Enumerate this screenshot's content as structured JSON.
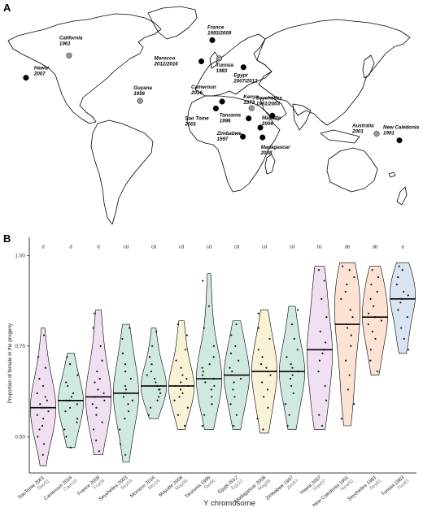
{
  "panel_a": {
    "letter": "A",
    "locations": [
      {
        "id": "hawai",
        "lines": [
          "Hawai",
          "2007"
        ],
        "color": "black",
        "lon": -157.8,
        "lat": 21.3
      },
      {
        "id": "california",
        "lines": [
          "California",
          "1961"
        ],
        "color": "grey",
        "lon": -120.5,
        "lat": 36.5
      },
      {
        "id": "guyana",
        "lines": [
          "Guyana",
          "1956"
        ],
        "color": "grey",
        "lon": -59.0,
        "lat": 5.5
      },
      {
        "id": "france",
        "lines": [
          "France",
          "1993/2009"
        ],
        "color": "black",
        "lon": 3.5,
        "lat": 47.0
      },
      {
        "id": "morocco",
        "lines": [
          "Morocco",
          "2012/2016"
        ],
        "color": "black",
        "lon": -6.0,
        "lat": 32.5
      },
      {
        "id": "tunisia",
        "lines": [
          "Tunisia",
          "1983"
        ],
        "color": "grey",
        "lon": 9.5,
        "lat": 34.5
      },
      {
        "id": "egypt",
        "lines": [
          "Egypt",
          "2007/2012"
        ],
        "color": "black",
        "lon": 30.5,
        "lat": 28.5
      },
      {
        "id": "cameroun",
        "lines": [
          "Cameroun",
          "2016"
        ],
        "color": "black",
        "lon": 12.0,
        "lat": 5.0
      },
      {
        "id": "saotome",
        "lines": [
          "Sao Tome",
          "2001"
        ],
        "color": "black",
        "lon": 6.6,
        "lat": 0.3
      },
      {
        "id": "kenya",
        "lines": [
          "Kenya",
          "1973"
        ],
        "color": "grey",
        "lon": 37.5,
        "lat": 0.5
      },
      {
        "id": "tanzania",
        "lines": [
          "Tanzania",
          "1996"
        ],
        "color": "black",
        "lon": 35.0,
        "lat": -6.5
      },
      {
        "id": "zimbabwe",
        "lines": [
          "Zimbabwe",
          "1997"
        ],
        "color": "black",
        "lon": 30.0,
        "lat": -19.0
      },
      {
        "id": "seychelles",
        "lines": [
          "Seychelles",
          "1981/2003"
        ],
        "color": "black",
        "lon": 55.5,
        "lat": -4.6
      },
      {
        "id": "mayotte",
        "lines": [
          "Mayotte",
          "2006"
        ],
        "color": "black",
        "lon": 45.1,
        "lat": -12.8
      },
      {
        "id": "madagascar",
        "lines": [
          "Madagascar",
          "2008"
        ],
        "color": "black",
        "lon": 47.0,
        "lat": -19.5
      },
      {
        "id": "australia",
        "lines": [
          "Australia",
          "2001"
        ],
        "color": "grey",
        "lon": 145.8,
        "lat": -17.0
      },
      {
        "id": "newcaledonia",
        "lines": [
          "New Caledonia",
          "1991"
        ],
        "color": "black",
        "lon": 165.5,
        "lat": -21.5
      }
    ]
  },
  "chart_data": {
    "type": "violin",
    "panel_letter": "B",
    "xlabel": "Y chromosome",
    "ylabel": "Proportion of female in the progeny",
    "ylim": [
      0.4,
      1.05
    ],
    "yticks": [
      "0.50",
      "0.75",
      "1.00"
    ],
    "ytick_values": [
      0.5,
      0.75,
      1.0
    ],
    "groups": [
      {
        "label": "SaoTome 2001",
        "code": "Sao01",
        "letter": "d",
        "color": "#f0dff0",
        "median": 0.58,
        "min": 0.42,
        "max": 0.8,
        "points": [
          0.45,
          0.48,
          0.5,
          0.52,
          0.53,
          0.55,
          0.56,
          0.57,
          0.58,
          0.58,
          0.59,
          0.6,
          0.61,
          0.62,
          0.64,
          0.66,
          0.69,
          0.72,
          0.78
        ]
      },
      {
        "label": "Cameroun 2016",
        "code": "Cam16",
        "letter": "d",
        "color": "#cfe9e1",
        "median": 0.6,
        "min": 0.47,
        "max": 0.73,
        "points": [
          0.47,
          0.5,
          0.52,
          0.54,
          0.55,
          0.57,
          0.58,
          0.59,
          0.6,
          0.6,
          0.61,
          0.62,
          0.64,
          0.65,
          0.67,
          0.7,
          0.72
        ]
      },
      {
        "label": "France 2009",
        "code": "Fra09",
        "letter": "d",
        "color": "#f0dff0",
        "median": 0.61,
        "min": 0.45,
        "max": 0.85,
        "points": [
          0.46,
          0.49,
          0.52,
          0.54,
          0.56,
          0.58,
          0.59,
          0.6,
          0.61,
          0.62,
          0.63,
          0.65,
          0.66,
          0.68,
          0.71,
          0.75,
          0.8,
          0.84
        ]
      },
      {
        "label": "Seychelles 2003",
        "code": "Sey03",
        "letter": "cd",
        "color": "#cfe9e1",
        "median": 0.62,
        "min": 0.43,
        "max": 0.81,
        "points": [
          0.45,
          0.48,
          0.52,
          0.55,
          0.57,
          0.59,
          0.6,
          0.61,
          0.62,
          0.63,
          0.64,
          0.66,
          0.68,
          0.7,
          0.73,
          0.77,
          0.8
        ]
      },
      {
        "label": "Morocco 2016",
        "code": "Mor16",
        "letter": "cd",
        "color": "#cfe9e1",
        "median": 0.64,
        "min": 0.55,
        "max": 0.8,
        "points": [
          0.56,
          0.58,
          0.6,
          0.61,
          0.62,
          0.63,
          0.63,
          0.64,
          0.65,
          0.66,
          0.67,
          0.68,
          0.7,
          0.72,
          0.75,
          0.79
        ]
      },
      {
        "label": "Mayotte 2006",
        "code": "May06",
        "letter": "cd",
        "color": "#f8f2d6",
        "median": 0.64,
        "min": 0.52,
        "max": 0.82,
        "points": [
          0.53,
          0.56,
          0.58,
          0.6,
          0.61,
          0.62,
          0.63,
          0.64,
          0.64,
          0.65,
          0.66,
          0.67,
          0.69,
          0.71,
          0.74,
          0.78,
          0.81
        ]
      },
      {
        "label": "Tanzania 1996",
        "code": "Tan96",
        "letter": "cd",
        "color": "#cfe9e1",
        "median": 0.66,
        "min": 0.52,
        "max": 0.95,
        "points": [
          0.53,
          0.56,
          0.59,
          0.61,
          0.63,
          0.64,
          0.65,
          0.66,
          0.66,
          0.67,
          0.68,
          0.69,
          0.7,
          0.72,
          0.75,
          0.8,
          0.86,
          0.93
        ]
      },
      {
        "label": "Egypt 2012",
        "code": "Egy12",
        "letter": "cd",
        "color": "#cfe9e1",
        "median": 0.67,
        "min": 0.52,
        "max": 0.82,
        "points": [
          0.53,
          0.56,
          0.59,
          0.61,
          0.63,
          0.65,
          0.66,
          0.67,
          0.68,
          0.69,
          0.71,
          0.73,
          0.75,
          0.78,
          0.81
        ]
      },
      {
        "label": "Madagascar 2008",
        "code": "Mag08",
        "letter": "cd",
        "color": "#f8f2d6",
        "median": 0.68,
        "min": 0.51,
        "max": 0.85,
        "points": [
          0.52,
          0.55,
          0.58,
          0.61,
          0.63,
          0.65,
          0.67,
          0.68,
          0.69,
          0.7,
          0.72,
          0.74,
          0.77,
          0.8,
          0.84
        ]
      },
      {
        "label": "Zimbabwe 1997",
        "code": "Zim97",
        "letter": "cd",
        "color": "#cfe9e1",
        "median": 0.68,
        "min": 0.52,
        "max": 0.86,
        "points": [
          0.53,
          0.56,
          0.59,
          0.62,
          0.64,
          0.66,
          0.67,
          0.68,
          0.69,
          0.7,
          0.72,
          0.74,
          0.77,
          0.81,
          0.85
        ]
      },
      {
        "label": "Hawai 2007",
        "code": "Haw07",
        "letter": "bc",
        "color": "#f0dff0",
        "median": 0.74,
        "min": 0.52,
        "max": 0.97,
        "points": [
          0.53,
          0.56,
          0.6,
          0.64,
          0.68,
          0.71,
          0.73,
          0.74,
          0.76,
          0.79,
          0.83,
          0.88,
          0.93,
          0.96
        ]
      },
      {
        "label": "New Caledonia 1991",
        "code": "New91",
        "letter": "ab",
        "color": "#fbe2d2",
        "median": 0.81,
        "min": 0.53,
        "max": 0.98,
        "points": [
          0.55,
          0.59,
          0.63,
          0.67,
          0.71,
          0.75,
          0.78,
          0.8,
          0.81,
          0.83,
          0.85,
          0.88,
          0.9,
          0.92,
          0.94,
          0.96,
          0.97
        ]
      },
      {
        "label": "Seychelles 1981",
        "code": "Sey81",
        "letter": "ab",
        "color": "#fbe2d2",
        "median": 0.83,
        "min": 0.67,
        "max": 0.97,
        "points": [
          0.68,
          0.71,
          0.74,
          0.77,
          0.79,
          0.81,
          0.82,
          0.83,
          0.84,
          0.86,
          0.88,
          0.9,
          0.92,
          0.94,
          0.96
        ]
      },
      {
        "label": "Tunisia 1983",
        "code": "Tun83",
        "letter": "a",
        "color": "#d9e4f3",
        "median": 0.88,
        "min": 0.73,
        "max": 0.98,
        "points": [
          0.74,
          0.77,
          0.8,
          0.83,
          0.85,
          0.87,
          0.88,
          0.89,
          0.9,
          0.92,
          0.94,
          0.96,
          0.97
        ]
      }
    ]
  }
}
